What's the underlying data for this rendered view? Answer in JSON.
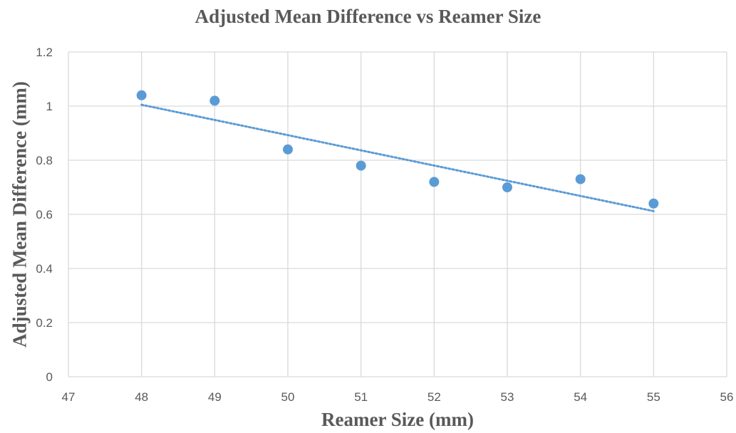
{
  "chart_data": {
    "type": "scatter",
    "title": "Adjusted Mean Difference vs Reamer Size",
    "xlabel": "Reamer Size (mm)",
    "ylabel": "Adjusted Mean Difference (mm)",
    "xlim": [
      47,
      56
    ],
    "ylim": [
      0,
      1.2
    ],
    "x_ticks": [
      "47",
      "48",
      "49",
      "50",
      "51",
      "52",
      "53",
      "54",
      "55",
      "56"
    ],
    "y_ticks": [
      "0",
      "0.2",
      "0.4",
      "0.6",
      "0.8",
      "1",
      "1.2"
    ],
    "grid": true,
    "legend": "none",
    "marker_color": "#5B9BD5",
    "trendline_color": "#5B9BD5",
    "trendline": {
      "type": "linear",
      "style": "dotted",
      "x": [
        48,
        55
      ],
      "y": [
        1.005,
        0.612
      ]
    },
    "series": [
      {
        "x": [
          48,
          49,
          50,
          51,
          52,
          53,
          54,
          55
        ],
        "y": [
          1.04,
          1.02,
          0.84,
          0.78,
          0.72,
          0.7,
          0.73,
          0.64
        ]
      }
    ]
  }
}
